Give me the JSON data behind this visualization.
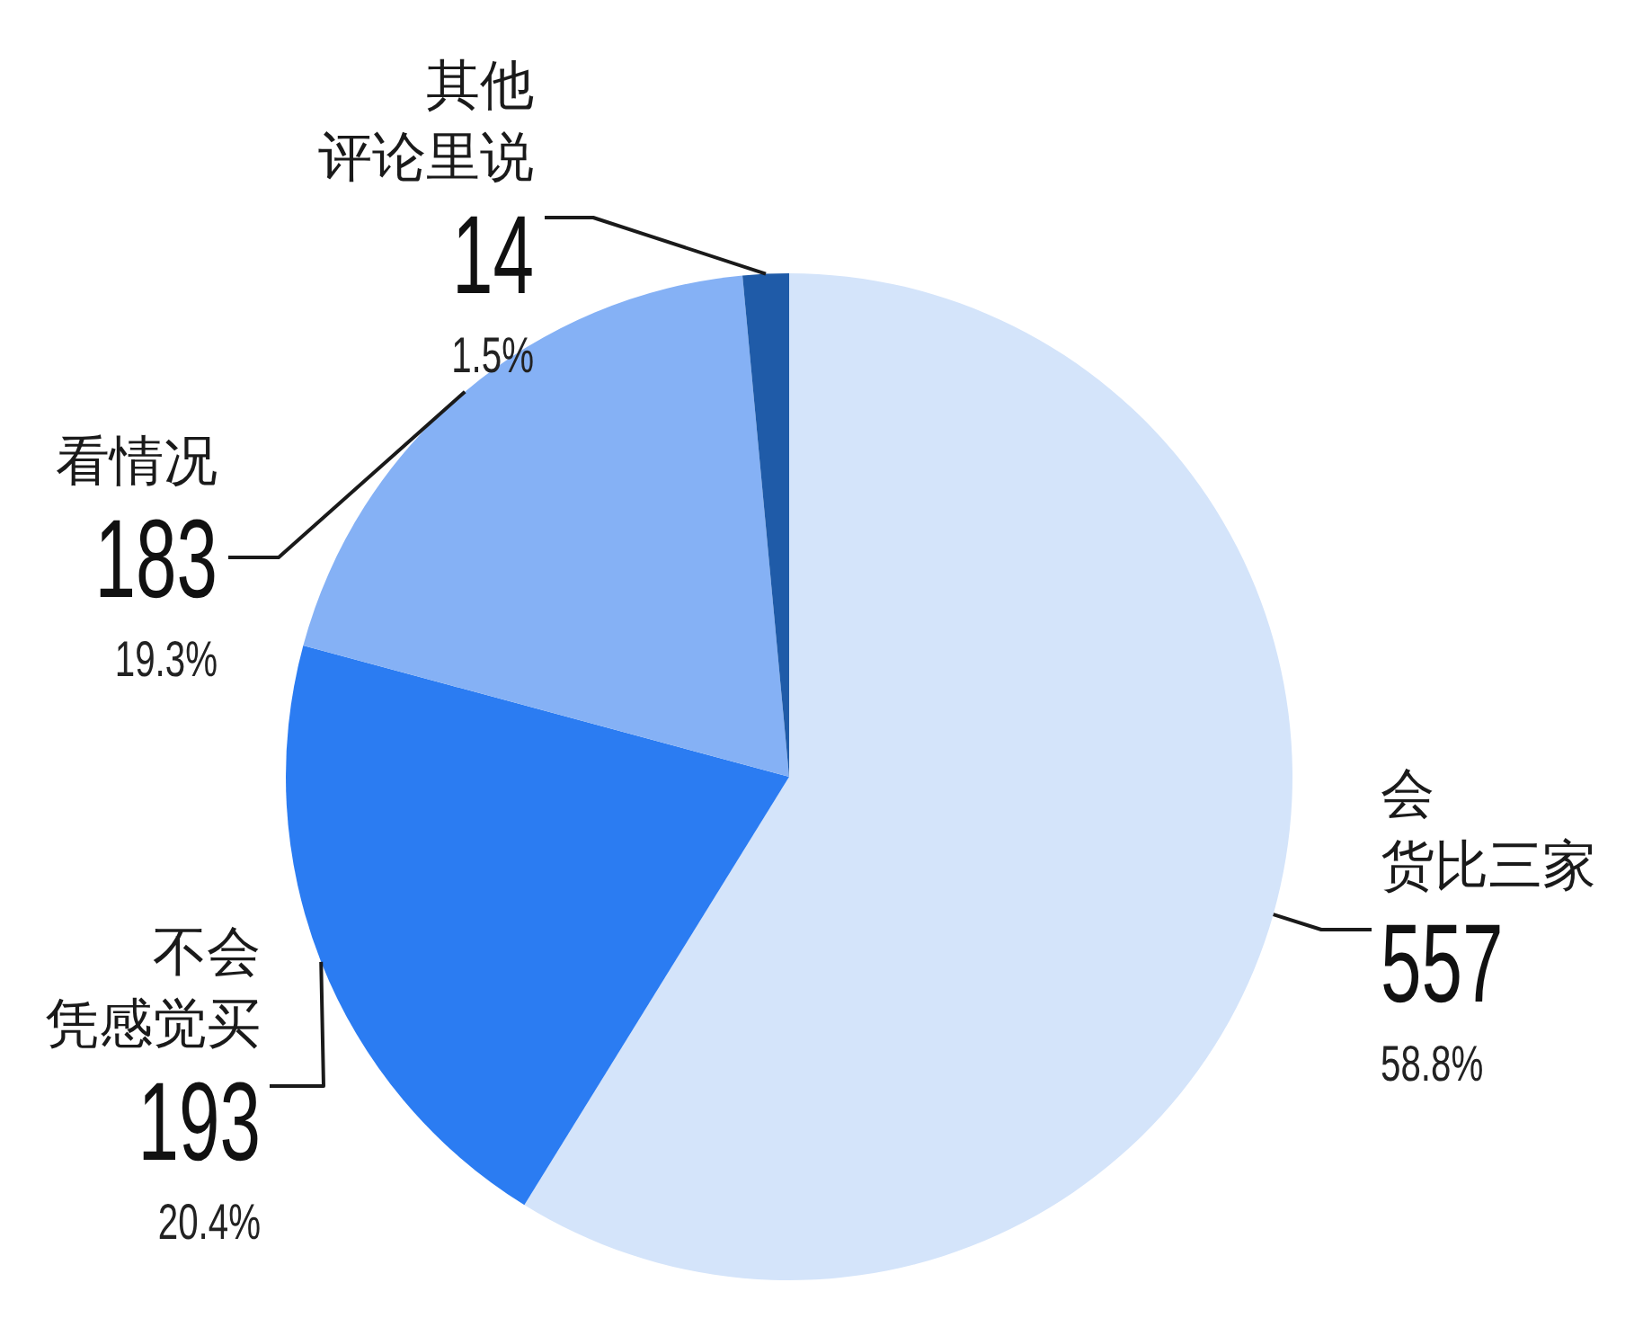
{
  "chart_data": {
    "type": "pie",
    "categories": [
      "会货比三家",
      "不会凭感觉买",
      "看情况",
      "其他评论里说"
    ],
    "values": [
      557,
      193,
      183,
      14
    ],
    "colors": [
      "#d4e4fa",
      "#2b7cf2",
      "#85b1f5",
      "#1f5ba8"
    ],
    "data_labels": true,
    "annotations": [
      "58.8%",
      "20.4%",
      "19.3%",
      "1.5%"
    ]
  }
}
